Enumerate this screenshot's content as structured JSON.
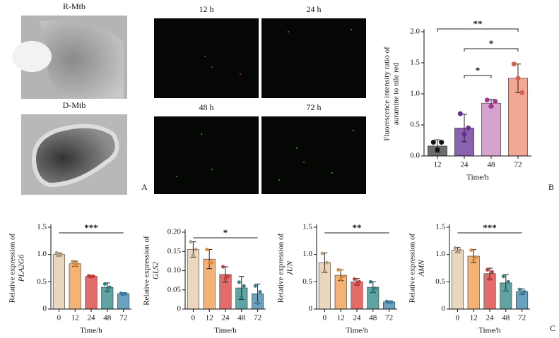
{
  "figure": {
    "image_labels": [
      "R-Mtb",
      "D-Mtb",
      "12 h",
      "24 h",
      "48 h",
      "72 h"
    ],
    "panel_labels": [
      "A",
      "B",
      "C"
    ]
  },
  "chart_data": [
    {
      "type": "bar",
      "categories": [
        "12",
        "24",
        "48",
        "72"
      ],
      "values": [
        0.16,
        0.45,
        0.85,
        1.25
      ],
      "errors": [
        0.1,
        0.22,
        0.06,
        0.23
      ],
      "points": [
        [
          0.22,
          0.1,
          0.22
        ],
        [
          0.68,
          0.35,
          0.45
        ],
        [
          0.9,
          0.8,
          0.88
        ],
        [
          1.48,
          1.25,
          1.02
        ]
      ],
      "colors": [
        "#6d6d6d",
        "#8a63b0",
        "#d6a3cf",
        "#f2a893"
      ],
      "point_colors": [
        "#111111",
        "#6a2c91",
        "#9c3b8c",
        "#d9604a"
      ],
      "ylim": [
        0,
        2
      ],
      "yticks": [
        {
          "value": 0,
          "label": "0.0"
        },
        {
          "value": 0.5,
          "label": "0.5"
        },
        {
          "value": 1,
          "label": "1.0"
        },
        {
          "value": 1.5,
          "label": "1.5"
        },
        {
          "value": 2,
          "label": "2.0"
        }
      ],
      "xlabel": "Time/h",
      "ylabel": [
        "Fluorescence intensity ratio of",
        "auramine to nile red"
      ],
      "bracket_ends": true,
      "annotations": [
        {
          "text": "**",
          "from": "12",
          "to": "72"
        },
        {
          "text": "*",
          "from": "24",
          "to": "72"
        },
        {
          "text": "*",
          "from": "24",
          "to": "48"
        }
      ]
    },
    {
      "type": "bar",
      "categories": [
        "0",
        "12",
        "24",
        "48",
        "72"
      ],
      "values": [
        1.0,
        0.83,
        0.6,
        0.4,
        0.28
      ],
      "errors": [
        0.03,
        0.05,
        0.02,
        0.08,
        0.02
      ],
      "points": [
        [
          1.03,
          0.98,
          1.0
        ],
        [
          0.87,
          0.8,
          0.83
        ],
        [
          0.61,
          0.59,
          0.6
        ],
        [
          0.46,
          0.33,
          0.4
        ],
        [
          0.29,
          0.27,
          0.28
        ]
      ],
      "colors": [
        "#ead7c0",
        "#f4b275",
        "#e56b6b",
        "#5fa3a3",
        "#6aa3c2"
      ],
      "point_colors": [
        "#b89e80",
        "#e0873a",
        "#c33d3d",
        "#2f7d7d",
        "#3c7fa3"
      ],
      "ylim": [
        0,
        1.5
      ],
      "yticks": [
        0,
        0.5,
        {
          "value": 1,
          "label": "1.0"
        },
        1.5
      ],
      "xlabel": "Time/h",
      "ylabel": [
        "Relative expression of"
      ],
      "gene": "PLA2G6",
      "bracket_ends": false,
      "annotations": [
        {
          "text": "***",
          "from": "0",
          "to": "72"
        }
      ]
    },
    {
      "type": "bar",
      "categories": [
        "0",
        "12",
        "24",
        "48",
        "72"
      ],
      "values": [
        0.155,
        0.13,
        0.09,
        0.055,
        0.04
      ],
      "errors": [
        0.02,
        0.025,
        0.02,
        0.03,
        0.025
      ],
      "points": [
        [
          0.175,
          0.14,
          0.155
        ],
        [
          0.155,
          0.12,
          0.12
        ],
        [
          0.11,
          0.08,
          0.085
        ],
        [
          0.07,
          0.03,
          0.06
        ],
        [
          0.06,
          0.015,
          0.045
        ]
      ],
      "colors": [
        "#ead7c0",
        "#f4b275",
        "#e56b6b",
        "#5fa3a3",
        "#6aa3c2"
      ],
      "point_colors": [
        "#b89e80",
        "#e0873a",
        "#c33d3d",
        "#2f7d7d",
        "#3c7fa3"
      ],
      "ylim": [
        0,
        0.2
      ],
      "yticks": [
        0,
        0.05,
        {
          "value": 0.1,
          "label": "0.10"
        },
        0.15,
        {
          "value": 0.2,
          "label": "0.20"
        }
      ],
      "xlabel": "Time/h",
      "ylabel": [
        "Relative expression of"
      ],
      "gene": "GLS2",
      "bracket_ends": false,
      "annotations": [
        {
          "text": "*",
          "from": "0",
          "to": "72"
        }
      ]
    },
    {
      "type": "bar",
      "categories": [
        "0",
        "12",
        "24",
        "48",
        "72"
      ],
      "values": [
        0.85,
        0.62,
        0.5,
        0.4,
        0.13
      ],
      "errors": [
        0.18,
        0.1,
        0.06,
        0.1,
        0.02
      ],
      "points": [
        [
          1.02,
          0.7,
          0.85
        ],
        [
          0.72,
          0.55,
          0.6
        ],
        [
          0.55,
          0.45,
          0.5
        ],
        [
          0.5,
          0.32,
          0.38
        ],
        [
          0.14,
          0.12,
          0.13
        ]
      ],
      "colors": [
        "#ead7c0",
        "#f4b275",
        "#e56b6b",
        "#5fa3a3",
        "#6aa3c2"
      ],
      "point_colors": [
        "#b89e80",
        "#e0873a",
        "#c33d3d",
        "#2f7d7d",
        "#3c7fa3"
      ],
      "ylim": [
        0,
        1.5
      ],
      "yticks": [
        0,
        0.5,
        {
          "value": 1,
          "label": "1.0"
        },
        1.5
      ],
      "xlabel": "Time/h",
      "ylabel": [
        "Relative expression of"
      ],
      "gene": "JUN",
      "bracket_ends": false,
      "annotations": [
        {
          "text": "**",
          "from": "0",
          "to": "72"
        }
      ]
    },
    {
      "type": "bar",
      "categories": [
        "0",
        "12",
        "24",
        "48",
        "72"
      ],
      "values": [
        1.08,
        0.97,
        0.65,
        0.48,
        0.32
      ],
      "errors": [
        0.05,
        0.12,
        0.1,
        0.15,
        0.05
      ],
      "points": [
        [
          1.12,
          1.05,
          1.08
        ],
        [
          1.08,
          0.9,
          0.95
        ],
        [
          0.72,
          0.55,
          0.68
        ],
        [
          0.6,
          0.35,
          0.5
        ],
        [
          0.36,
          0.28,
          0.32
        ]
      ],
      "colors": [
        "#ead7c0",
        "#f4b275",
        "#e56b6b",
        "#5fa3a3",
        "#6aa3c2"
      ],
      "point_colors": [
        "#b89e80",
        "#e0873a",
        "#c33d3d",
        "#2f7d7d",
        "#3c7fa3"
      ],
      "ylim": [
        0,
        1.5
      ],
      "yticks": [
        0,
        0.5,
        {
          "value": 1,
          "label": "1.0"
        },
        1.5
      ],
      "xlabel": "Time/h",
      "ylabel": [
        "Relative expression of"
      ],
      "gene": "AMN",
      "bracket_ends": false,
      "annotations": [
        {
          "text": "***",
          "from": "0",
          "to": "72"
        }
      ]
    }
  ]
}
